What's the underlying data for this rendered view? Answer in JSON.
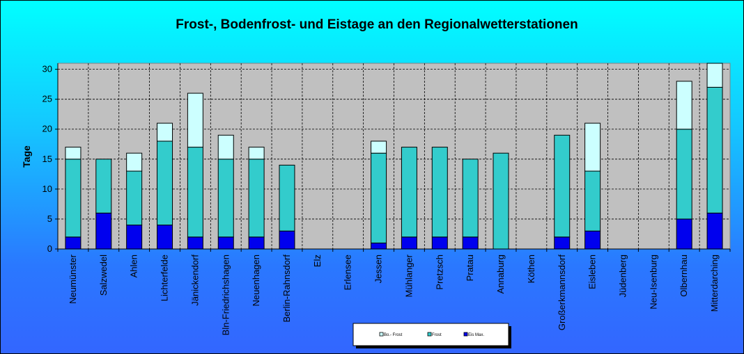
{
  "chart_data": {
    "type": "bar",
    "stacked": true,
    "title": "Frost-, Bodenfrost- und Eistage an den Regionalwetterstationen",
    "ylabel": "Tage",
    "ylim": [
      0,
      31
    ],
    "yticks": [
      0,
      5,
      10,
      15,
      20,
      25,
      30
    ],
    "grid": true,
    "legend_position": "bottom",
    "categories": [
      "Neumünster",
      "Salzwedel",
      "Ahlen",
      "Lichterfelde",
      "Jänickendorf",
      "Bln-Friedrichshagen",
      "Neuenhagen",
      "Berlin-Rahnsdorf",
      "Elz",
      "Erlensee",
      "Jessen",
      "Mühlanger",
      "Pretzsch",
      "Pratau",
      "Annaburg",
      "Köthen",
      "Großerkmannsdorf",
      "Eisleben",
      "Jüdenberg",
      "Neu-Isenburg",
      "Olbernhau",
      "Mitterdarching"
    ],
    "series": [
      {
        "name": "Eis Max.",
        "color": "#0000ee",
        "values": [
          2,
          6,
          4,
          4,
          2,
          2,
          2,
          3,
          0,
          0,
          1,
          2,
          2,
          2,
          0,
          0,
          2,
          3,
          0,
          0,
          5,
          6
        ]
      },
      {
        "name": "Frost",
        "color": "#33cccc",
        "values": [
          13,
          9,
          9,
          14,
          15,
          13,
          13,
          11,
          0,
          0,
          15,
          15,
          15,
          13,
          16,
          0,
          17,
          10,
          0,
          0,
          15,
          21
        ]
      },
      {
        "name": "Bo.- Frost",
        "color": "#ccffff",
        "values": [
          2,
          0,
          3,
          3,
          9,
          4,
          2,
          0,
          0,
          0,
          2,
          0,
          0,
          0,
          0,
          0,
          0,
          8,
          0,
          0,
          8,
          4
        ]
      }
    ],
    "legend": [
      {
        "label": "Bo.- Frost",
        "color": "#ccffff"
      },
      {
        "label": "Frost",
        "color": "#33cccc"
      },
      {
        "label": "Eis Max.",
        "color": "#0000ee"
      }
    ]
  }
}
